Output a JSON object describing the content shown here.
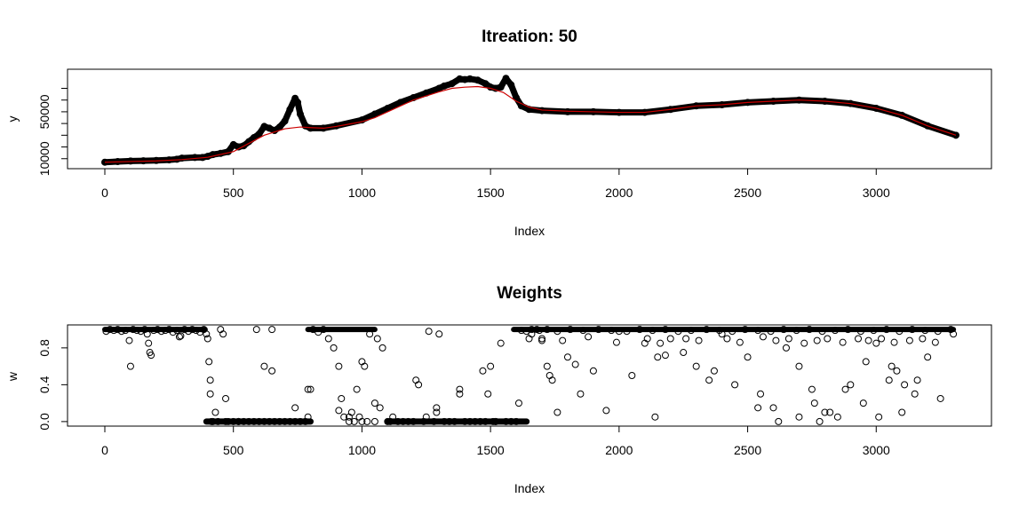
{
  "chart_data": [
    {
      "type": "scatter",
      "title": "Itreation:  50",
      "xlabel": "Index",
      "ylabel": "y",
      "xlim": [
        0,
        3310
      ],
      "ylim": [
        3000,
        84000
      ],
      "xticks": [
        0,
        500,
        1000,
        1500,
        2000,
        2500,
        3000
      ],
      "yticks": [
        10000,
        20000,
        30000,
        40000,
        50000,
        60000,
        70000
      ],
      "ytick_labels": [
        "10000",
        "",
        "",
        "",
        "50000",
        "",
        ""
      ],
      "series": [
        {
          "kind": "points",
          "color": "#000000",
          "x": [
            0,
            50,
            100,
            150,
            200,
            250,
            280,
            300,
            350,
            380,
            400,
            420,
            450,
            480,
            500,
            520,
            540,
            560,
            580,
            600,
            620,
            640,
            660,
            680,
            700,
            720,
            740,
            750,
            760,
            780,
            800,
            850,
            900,
            1000,
            1050,
            1100,
            1150,
            1200,
            1250,
            1300,
            1320,
            1350,
            1380,
            1400,
            1420,
            1450,
            1480,
            1500,
            1520,
            1540,
            1560,
            1580,
            1600,
            1620,
            1650,
            1700,
            1800,
            1900,
            2000,
            2100,
            2200,
            2300,
            2400,
            2500,
            2600,
            2700,
            2800,
            2900,
            3000,
            3100,
            3200,
            3310
          ],
          "y": [
            7000,
            7500,
            8000,
            8200,
            8500,
            9000,
            9500,
            10500,
            11000,
            11000,
            12000,
            13500,
            14500,
            16000,
            22000,
            20000,
            21000,
            24500,
            28000,
            31000,
            37500,
            36000,
            34000,
            37000,
            42000,
            52000,
            61500,
            58000,
            48000,
            38000,
            36000,
            36000,
            38000,
            43000,
            48000,
            53000,
            58000,
            62000,
            66000,
            70000,
            72000,
            74000,
            78000,
            77500,
            78000,
            77000,
            74000,
            71000,
            70000,
            71000,
            78500,
            73000,
            62000,
            55000,
            52000,
            51000,
            50000,
            50000,
            49500,
            49500,
            52000,
            55000,
            56000,
            58000,
            59000,
            60000,
            59000,
            57000,
            53000,
            47000,
            38000,
            30000
          ]
        },
        {
          "kind": "line",
          "color": "#cc0000",
          "x": [
            0,
            100,
            200,
            300,
            400,
            500,
            560,
            620,
            700,
            760,
            800,
            850,
            900,
            1000,
            1050,
            1100,
            1150,
            1200,
            1300,
            1350,
            1400,
            1450,
            1500,
            1550,
            1600,
            1650,
            1700,
            1800,
            1900,
            2000,
            2100,
            2200,
            2300,
            2400,
            2500,
            2600,
            2700,
            2800,
            2900,
            3000,
            3100,
            3200,
            3310
          ],
          "y": [
            7000,
            7600,
            8100,
            9200,
            11200,
            16000,
            23000,
            30000,
            35500,
            37000,
            36500,
            36000,
            37500,
            41500,
            45000,
            50000,
            55000,
            60000,
            67000,
            70000,
            71000,
            71500,
            70000,
            66500,
            59000,
            54000,
            51500,
            50500,
            50000,
            49500,
            49500,
            52000,
            55000,
            56000,
            58000,
            59000,
            60000,
            59000,
            57000,
            53000,
            47000,
            38000,
            30000
          ]
        }
      ]
    },
    {
      "type": "scatter",
      "title": "Weights",
      "xlabel": "Index",
      "ylabel": "w",
      "xlim": [
        0,
        3310
      ],
      "ylim": [
        -0.03,
        1.03
      ],
      "xticks": [
        0,
        500,
        1000,
        1500,
        2000,
        2500,
        3000
      ],
      "yticks": [
        0.0,
        0.4,
        0.8
      ],
      "ytick_labels": [
        "0.0",
        "0.4",
        "0.8"
      ],
      "series": [
        {
          "kind": "points",
          "color": "#000000",
          "x": [
            5,
            20,
            35,
            50,
            65,
            80,
            95,
            100,
            110,
            125,
            140,
            155,
            165,
            170,
            175,
            180,
            190,
            205,
            220,
            235,
            250,
            265,
            280,
            295,
            310,
            325,
            340,
            355,
            370,
            385,
            395,
            400,
            405,
            410,
            415,
            420,
            440,
            450,
            460,
            470,
            480,
            500,
            520,
            540,
            560,
            580,
            590,
            600,
            620,
            640,
            650,
            660,
            680,
            700,
            720,
            740,
            760,
            780,
            790,
            800,
            810,
            830,
            850,
            870,
            890,
            910,
            920,
            930,
            950,
            960,
            970,
            980,
            990,
            1000,
            1010,
            1020,
            1030,
            1050,
            1060,
            1070,
            1080,
            1100,
            1110,
            1120,
            1140,
            1160,
            1180,
            1200,
            1220,
            1240,
            1250,
            1260,
            1280,
            1290,
            1300,
            1320,
            1340,
            1360,
            1380,
            1400,
            1420,
            1440,
            1460,
            1480,
            1490,
            1500,
            1510,
            1520,
            1540,
            1560,
            1580,
            1600,
            1610,
            1620,
            1640,
            1650,
            1660,
            1680,
            1700,
            1720,
            1740,
            1760,
            1800,
            1850,
            1900,
            1950,
            2000,
            2050,
            2100,
            2150,
            2200,
            2250,
            2300,
            2350,
            2400,
            2450,
            2500,
            2550,
            2600,
            2650,
            2700,
            2750,
            2800,
            2850,
            2900,
            2950,
            3000,
            3050,
            3100,
            3150,
            3200,
            3250,
            3300,
            1660,
            1690,
            1720,
            1760,
            1810,
            1860,
            1920,
            1970,
            2030,
            2080,
            2130,
            2180,
            2230,
            2280,
            2340,
            2390,
            2440,
            2490,
            2540,
            2590,
            2640,
            2690,
            2740,
            2790,
            2840,
            2890,
            2940,
            2990,
            3040,
            3090,
            3140,
            3190,
            3240,
            3290,
            1700,
            1780,
            1880,
            1990,
            2110,
            2160,
            2260,
            2310,
            2420,
            2470,
            2560,
            2610,
            2660,
            2720,
            2770,
            2810,
            2870,
            2930,
            2970,
            3020,
            3070,
            3130,
            3180,
            3230,
            1730,
            1830,
            2140,
            2370,
            2620,
            2780,
            2820,
            2960,
            3010,
            3110,
            2180,
            2540,
            2700,
            3060,
            3160,
            2760,
            2880,
            3080,
            290,
            410,
            430,
            470,
            520,
            620,
            650,
            740,
            790,
            910,
            950,
            1000,
            1050,
            1210,
            1290,
            1380,
            1470,
            1520
          ],
          "y": [
            0.98,
            1.0,
            0.99,
            1.0,
            0.98,
            0.99,
            0.88,
            0.6,
            1.0,
            0.99,
            0.98,
            1.0,
            0.95,
            0.85,
            0.75,
            0.72,
            0.99,
            1.0,
            0.98,
            0.99,
            1.0,
            0.97,
            0.99,
            0.93,
            1.0,
            0.98,
            1.0,
            0.99,
            0.97,
            1.0,
            0.95,
            0.9,
            0.65,
            0.3,
            0.0,
            0.0,
            0.0,
            1.0,
            0.95,
            0.0,
            0.0,
            0.0,
            0.0,
            0.0,
            0.0,
            0.0,
            1.0,
            0.0,
            0.0,
            0.0,
            1.0,
            0.0,
            0.0,
            0.0,
            0.0,
            0.0,
            0.0,
            0.0,
            0.05,
            0.35,
            1.0,
            0.97,
            1.0,
            0.9,
            0.8,
            0.6,
            0.25,
            0.05,
            0.0,
            0.1,
            0.0,
            0.35,
            0.05,
            0.0,
            0.6,
            0.0,
            0.95,
            0.0,
            0.9,
            0.15,
            0.8,
            0.0,
            0.0,
            0.05,
            0.0,
            0.0,
            0.0,
            0.0,
            0.4,
            0.0,
            0.05,
            0.98,
            0.0,
            0.1,
            0.95,
            0.0,
            0.0,
            0.0,
            0.35,
            0.0,
            0.0,
            0.0,
            0.0,
            0.0,
            0.3,
            0.6,
            0.0,
            0.0,
            0.85,
            0.0,
            0.0,
            0.0,
            0.2,
            0.99,
            0.98,
            0.9,
            0.95,
            1.0,
            0.88,
            0.6,
            0.45,
            0.1,
            0.7,
            0.3,
            0.55,
            0.12,
            0.98,
            0.5,
            0.85,
            0.7,
            0.9,
            0.75,
            0.6,
            0.45,
            0.95,
            0.4,
            0.7,
            0.3,
            0.15,
            0.8,
            0.6,
            0.35,
            0.1,
            0.05,
            0.4,
            0.2,
            0.85,
            0.45,
            0.1,
            0.3,
            0.7,
            0.25,
            0.95,
            1.0,
            0.99,
            1.0,
            0.98,
            1.0,
            0.99,
            1.0,
            0.99,
            0.98,
            1.0,
            0.99,
            1.0,
            0.98,
            0.99,
            1.0,
            0.99,
            0.98,
            1.0,
            0.99,
            0.98,
            1.0,
            0.99,
            1.0,
            0.98,
            0.99,
            1.0,
            0.98,
            0.99,
            1.0,
            0.98,
            1.0,
            0.99,
            0.98,
            1.0,
            0.9,
            0.88,
            0.92,
            0.86,
            0.9,
            0.85,
            0.9,
            0.88,
            0.9,
            0.86,
            0.92,
            0.88,
            0.9,
            0.85,
            0.88,
            0.9,
            0.86,
            0.9,
            0.88,
            0.9,
            0.86,
            0.88,
            0.9,
            0.86,
            0.5,
            0.62,
            0.05,
            0.55,
            0.0,
            0.0,
            0.1,
            0.65,
            0.05,
            0.4,
            0.72,
            0.15,
            0.05,
            0.6,
            0.45,
            0.2,
            0.35,
            0.55,
            0.92,
            0.45,
            0.1,
            0.25,
            0.0,
            0.6,
            0.55,
            0.15,
            0.35,
            0.12,
            0.05,
            0.65,
            0.2,
            0.45,
            0.15,
            0.3,
            0.55,
            0.0
          ]
        }
      ]
    }
  ]
}
